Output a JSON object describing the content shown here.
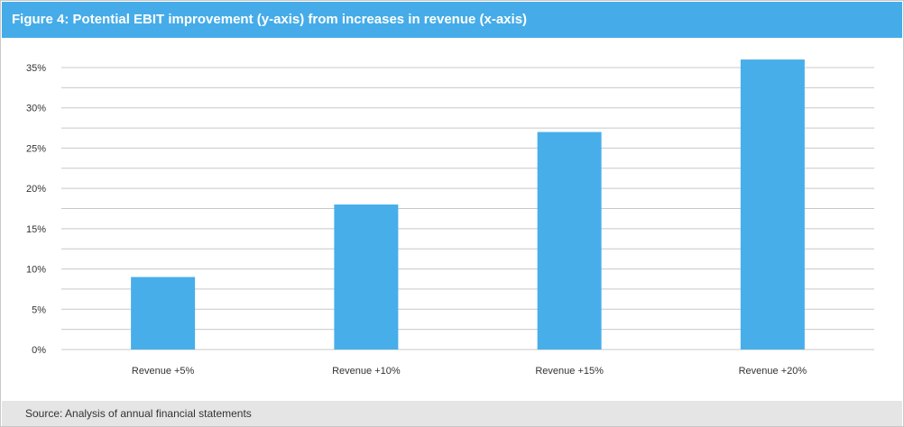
{
  "header": {
    "figure_label": "Figure 4",
    "title": "Potential EBIT improvement (y-axis) from increases in revenue (x-axis)"
  },
  "footer": {
    "source": "Source: Analysis of annual financial statements"
  },
  "colors": {
    "accent": "#45ace9",
    "bar": "#47aeea",
    "grid": "#c8c8c8",
    "footer_bg": "#e5e5e5"
  },
  "chart_data": {
    "type": "bar",
    "title": "Potential EBIT improvement (y-axis) from increases in revenue (x-axis)",
    "categories": [
      "Revenue +5%",
      "Revenue +10%",
      "Revenue +15%",
      "Revenue +20%"
    ],
    "values": [
      9,
      18,
      27,
      36
    ],
    "ylim": [
      0,
      35
    ],
    "yticks": [
      "0%",
      "5%",
      "10%",
      "15%",
      "20%",
      "25%",
      "30%",
      "35%"
    ],
    "ytick_values": [
      0,
      5,
      10,
      15,
      20,
      25,
      30,
      35
    ],
    "grid": true,
    "legend": "none"
  }
}
